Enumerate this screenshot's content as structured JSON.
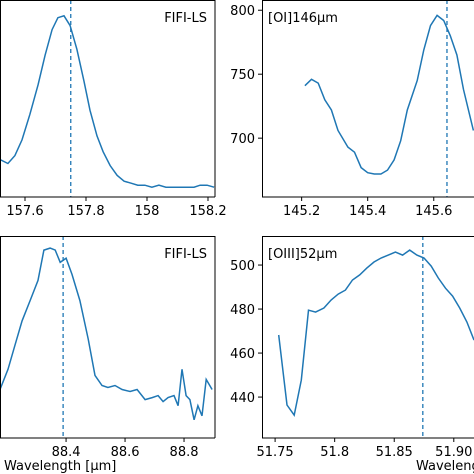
{
  "chart_data": [
    {
      "type": "line",
      "annotation": "FIFI-LS",
      "vline": 157.75,
      "xlim": [
        157.518,
        158.223
      ],
      "ylim": [
        0,
        1
      ],
      "xticks": [
        157.6,
        157.8,
        158.0,
        158.2
      ],
      "x": [
        157.518,
        157.544,
        157.567,
        157.59,
        157.616,
        157.643,
        157.666,
        157.689,
        157.708,
        157.728,
        157.748,
        157.77,
        157.793,
        157.813,
        157.836,
        157.856,
        157.879,
        157.902,
        157.925,
        157.948,
        157.97,
        157.993,
        158.016,
        158.039,
        158.062,
        158.085,
        158.108,
        158.131,
        158.154,
        158.174,
        158.197,
        158.22
      ],
      "series": [
        {
          "color": "#1f77b4",
          "values": [
            0.19,
            0.17,
            0.21,
            0.29,
            0.42,
            0.57,
            0.72,
            0.85,
            0.91,
            0.92,
            0.87,
            0.75,
            0.59,
            0.44,
            0.31,
            0.23,
            0.16,
            0.11,
            0.08,
            0.07,
            0.06,
            0.06,
            0.05,
            0.06,
            0.05,
            0.05,
            0.05,
            0.05,
            0.05,
            0.06,
            0.06,
            0.05
          ]
        }
      ]
    },
    {
      "type": "line",
      "annotation": "[OI]146μm",
      "vline": 145.64,
      "xlim": [
        145.08,
        145.74
      ],
      "ylim": [
        654,
        808
      ],
      "xticks": [
        145.2,
        145.4,
        145.6
      ],
      "yticks": [
        700,
        750,
        800
      ],
      "x": [
        145.21,
        145.23,
        145.25,
        145.27,
        145.29,
        145.31,
        145.34,
        145.36,
        145.38,
        145.4,
        145.42,
        145.44,
        145.46,
        145.48,
        145.5,
        145.52,
        145.55,
        145.57,
        145.59,
        145.61,
        145.63,
        145.65,
        145.67,
        145.69,
        145.72
      ],
      "series": [
        {
          "color": "#1f77b4",
          "values": [
            741,
            746,
            743,
            730,
            722,
            706,
            693,
            689,
            677,
            673,
            672,
            672,
            675,
            683,
            698,
            722,
            745,
            769,
            788,
            796,
            792,
            780,
            765,
            738,
            706
          ]
        }
      ]
    },
    {
      "type": "line",
      "annotation": "FIFI-LS",
      "vline": 88.39,
      "xlim": [
        88.176,
        88.905
      ],
      "ylim": [
        0,
        1
      ],
      "xticks": [
        88.4,
        88.6,
        88.8
      ],
      "xlabel": "Wavelength [μm]",
      "x": [
        88.176,
        88.203,
        88.227,
        88.251,
        88.278,
        88.305,
        88.325,
        88.346,
        88.363,
        88.38,
        88.4,
        88.42,
        88.447,
        88.475,
        88.498,
        88.522,
        88.542,
        88.566,
        88.59,
        88.617,
        88.641,
        88.668,
        88.692,
        88.712,
        88.729,
        88.746,
        88.766,
        88.78,
        88.793,
        88.807,
        88.82,
        88.834,
        88.847,
        88.861,
        88.875,
        88.895
      ],
      "series": [
        {
          "color": "#1f77b4",
          "values": [
            0.24,
            0.34,
            0.46,
            0.58,
            0.68,
            0.78,
            0.93,
            0.94,
            0.93,
            0.87,
            0.89,
            0.81,
            0.68,
            0.49,
            0.31,
            0.26,
            0.25,
            0.26,
            0.24,
            0.23,
            0.24,
            0.19,
            0.2,
            0.21,
            0.18,
            0.2,
            0.21,
            0.16,
            0.34,
            0.21,
            0.19,
            0.09,
            0.16,
            0.11,
            0.29,
            0.24
          ]
        }
      ]
    },
    {
      "type": "line",
      "annotation": "[OIII]52μm",
      "vline": 51.874,
      "xlim": [
        51.739,
        51.922
      ],
      "ylim": [
        421.4,
        513.2
      ],
      "xticks": [
        51.75,
        51.8,
        51.85,
        {
          "value": 51.9,
          "label": "51.90"
        }
      ],
      "yticks": [
        440,
        460,
        480,
        500
      ],
      "xlabel": "Wavelength [μm]",
      "x": [
        51.753,
        51.76,
        51.766,
        51.772,
        51.778,
        51.784,
        51.791,
        51.797,
        51.803,
        51.809,
        51.815,
        51.821,
        51.827,
        51.833,
        51.839,
        51.845,
        51.851,
        51.857,
        51.863,
        51.869,
        51.875,
        51.881,
        51.887,
        51.893,
        51.899,
        51.905,
        51.911,
        51.917
      ],
      "series": [
        {
          "color": "#1f77b4",
          "values": [
            468.2,
            436.4,
            431.8,
            447.7,
            479.5,
            478.6,
            480.5,
            484.1,
            486.8,
            488.6,
            493.2,
            495.5,
            498.6,
            501.4,
            503.2,
            504.5,
            505.9,
            504.5,
            506.8,
            504.5,
            503.2,
            499.5,
            494.1,
            489.5,
            485.9,
            480.5,
            474.1,
            465.9
          ]
        }
      ]
    }
  ]
}
